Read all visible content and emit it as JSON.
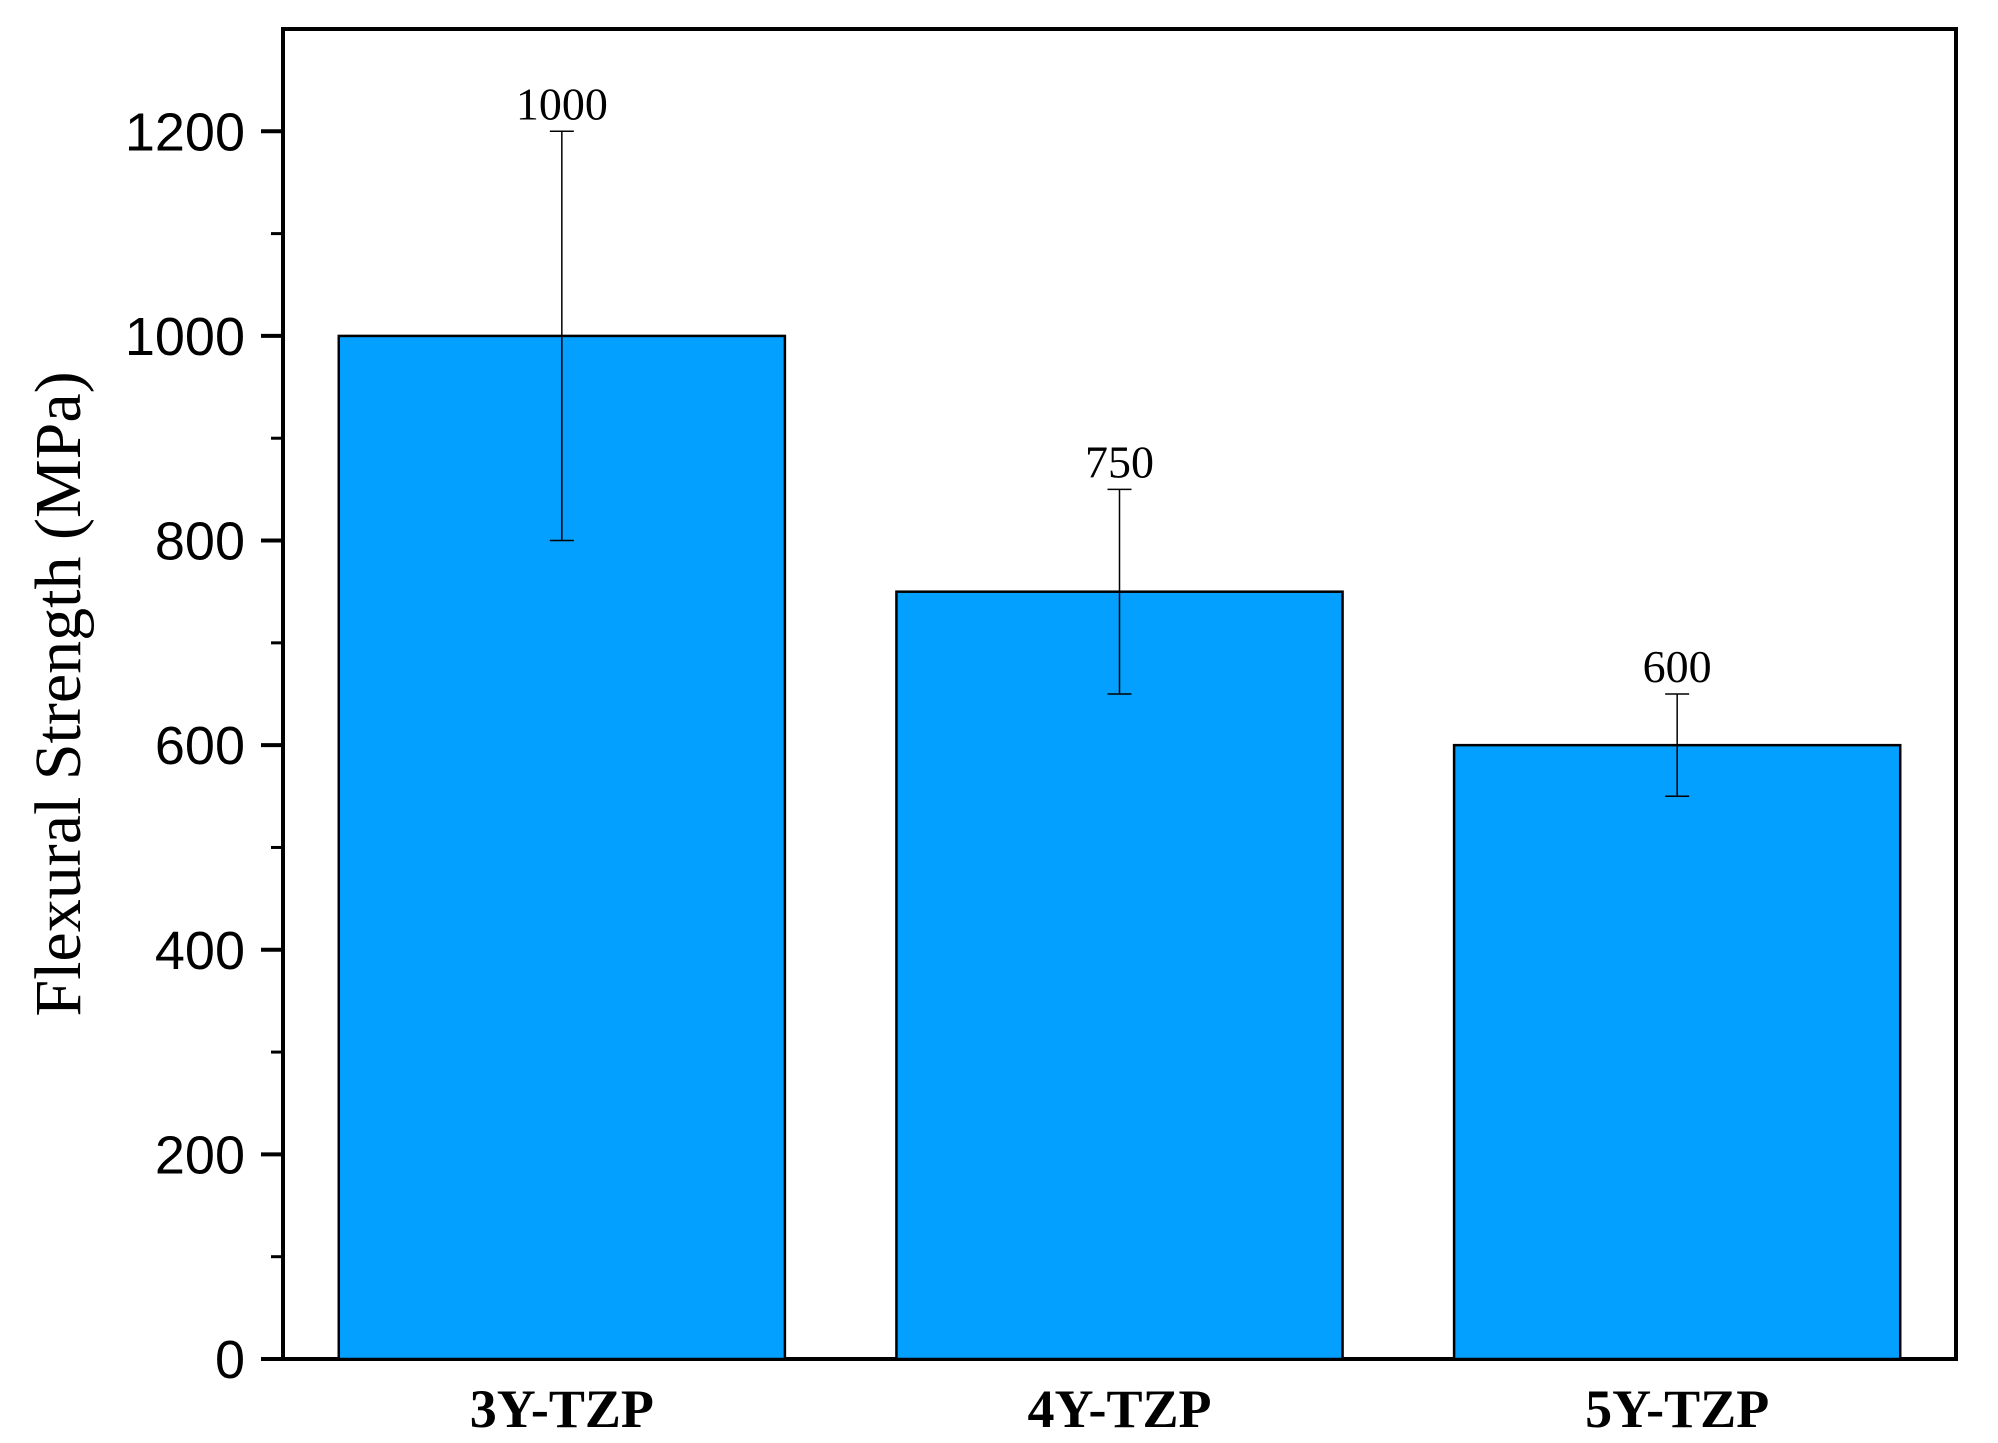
{
  "chart_data": {
    "type": "bar",
    "categories": [
      "3Y-TZP",
      "4Y-TZP",
      "5Y-TZP"
    ],
    "values": [
      1000,
      750,
      600
    ],
    "error_low": [
      800,
      650,
      550
    ],
    "error_high": [
      1200,
      850,
      650
    ],
    "data_labels": [
      "1000",
      "750",
      "600"
    ],
    "ylabel": "Flexural Strength (MPa)",
    "xlabel": "",
    "ylim": [
      0,
      1300
    ],
    "y_ticks": [
      0,
      200,
      400,
      600,
      800,
      1000,
      1200
    ],
    "y_tick_labels": [
      "0",
      "200",
      "400",
      "600",
      "800",
      "1000",
      "1200"
    ],
    "y_minor_step": 100,
    "grid": false,
    "bar_color": "#03a0ff",
    "bar_edge_color": "#000000"
  }
}
